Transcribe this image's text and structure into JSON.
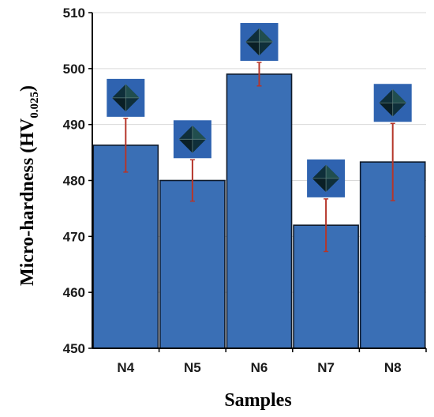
{
  "colors": {
    "bar_fill": "#3a6fb5",
    "bar_stroke": "#0f1a2a",
    "error_bar": "#b5362a",
    "indent_bg": "#2f63b0",
    "grid": "#d9d9d9"
  },
  "chart_data": {
    "type": "bar",
    "xlabel": "Samples",
    "ylabel_main": "Micro-hardness (HV",
    "ylabel_sub": "0.025",
    "ylabel_close": ")",
    "ylim": [
      450,
      510
    ],
    "yticks": [
      "450",
      "460",
      "470",
      "480",
      "490",
      "500",
      "510"
    ],
    "grid": true,
    "categories": [
      "N4",
      "N5",
      "N6",
      "N7",
      "N8"
    ],
    "values": [
      486.3,
      480.0,
      499.0,
      472.0,
      483.3
    ],
    "errors": [
      4.8,
      3.7,
      2.1,
      4.7,
      6.9
    ]
  }
}
